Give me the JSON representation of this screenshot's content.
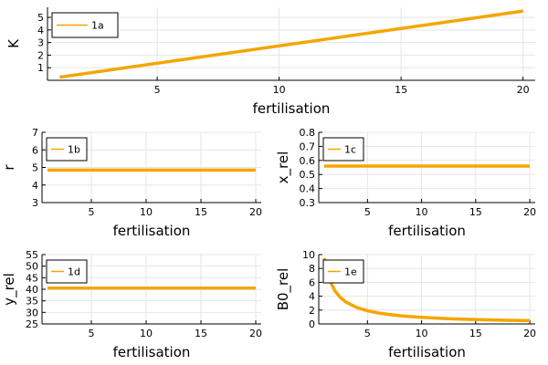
{
  "series_color": "#f5a500",
  "chart_data": [
    {
      "id": "a",
      "type": "line",
      "xlabel": "fertilisation",
      "ylabel": "K",
      "xlim": [
        0.5,
        20.5
      ],
      "ylim": [
        0.0,
        5.8
      ],
      "xticks": [
        5,
        10,
        15,
        20
      ],
      "yticks": [
        1,
        2,
        3,
        4,
        5
      ],
      "grid": true,
      "legend": "top-left",
      "series": [
        {
          "name": "1a",
          "x": [
            1,
            20
          ],
          "y": [
            0.25,
            5.5
          ]
        }
      ]
    },
    {
      "id": "b",
      "type": "line",
      "xlabel": "fertilisation",
      "ylabel": "r",
      "xlim": [
        0.5,
        20.5
      ],
      "ylim": [
        3,
        7
      ],
      "xticks": [
        5,
        10,
        15,
        20
      ],
      "yticks": [
        3,
        4,
        5,
        6,
        7
      ],
      "grid": true,
      "legend": "top-left",
      "series": [
        {
          "name": "1b",
          "x": [
            1,
            20
          ],
          "y": [
            4.85,
            4.85
          ]
        }
      ]
    },
    {
      "id": "c",
      "type": "line",
      "xlabel": "fertilisation",
      "ylabel": "x_rel",
      "xlim": [
        0.5,
        20.5
      ],
      "ylim": [
        0.3,
        0.8
      ],
      "xticks": [
        5,
        10,
        15,
        20
      ],
      "yticks": [
        0.3,
        0.4,
        0.5,
        0.6,
        0.7,
        0.8
      ],
      "grid": true,
      "legend": "top-left",
      "series": [
        {
          "name": "1c",
          "x": [
            1,
            20
          ],
          "y": [
            0.56,
            0.56
          ]
        }
      ]
    },
    {
      "id": "d",
      "type": "line",
      "xlabel": "fertilisation",
      "ylabel": "y_rel",
      "xlim": [
        0.5,
        20.5
      ],
      "ylim": [
        25,
        55
      ],
      "xticks": [
        5,
        10,
        15,
        20
      ],
      "yticks": [
        25,
        30,
        35,
        40,
        45,
        50,
        55
      ],
      "grid": true,
      "legend": "top-left",
      "series": [
        {
          "name": "1d",
          "x": [
            1,
            20
          ],
          "y": [
            40.5,
            40.5
          ]
        }
      ]
    },
    {
      "id": "e",
      "type": "line",
      "xlabel": "fertilisation",
      "ylabel": "B0_rel",
      "xlim": [
        0.5,
        20.5
      ],
      "ylim": [
        0,
        10
      ],
      "xticks": [
        5,
        10,
        15,
        20
      ],
      "yticks": [
        0,
        2,
        4,
        6,
        8,
        10
      ],
      "grid": true,
      "legend": "top-left",
      "series": [
        {
          "name": "1e",
          "x": [
            1,
            1.5,
            2,
            2.5,
            3,
            4,
            5,
            6,
            7,
            8,
            9,
            10,
            12,
            14,
            16,
            18,
            20
          ],
          "y": [
            9.5,
            6.3,
            4.75,
            3.8,
            3.17,
            2.38,
            1.9,
            1.58,
            1.36,
            1.19,
            1.06,
            0.95,
            0.79,
            0.68,
            0.59,
            0.53,
            0.475
          ]
        }
      ]
    }
  ]
}
